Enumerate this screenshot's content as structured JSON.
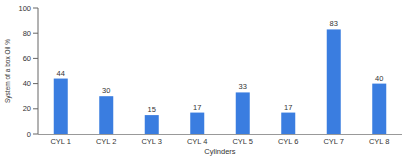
{
  "chart_data": {
    "type": "bar",
    "x_label": "Cylinders",
    "y_label": "System of a box Oil %",
    "categories": [
      "CYL 1",
      "CYL 2",
      "CYL 3",
      "CYL 4",
      "CYL 5",
      "CYL 6",
      "CYL 7",
      "CYL 8"
    ],
    "values": [
      44,
      30,
      15,
      17,
      33,
      17,
      83,
      40
    ],
    "color": "#3a7de0",
    "ylim": [
      0,
      100
    ],
    "yticks": [
      0,
      20,
      40,
      60,
      80,
      100
    ],
    "grid": false,
    "data_labels": true
  }
}
